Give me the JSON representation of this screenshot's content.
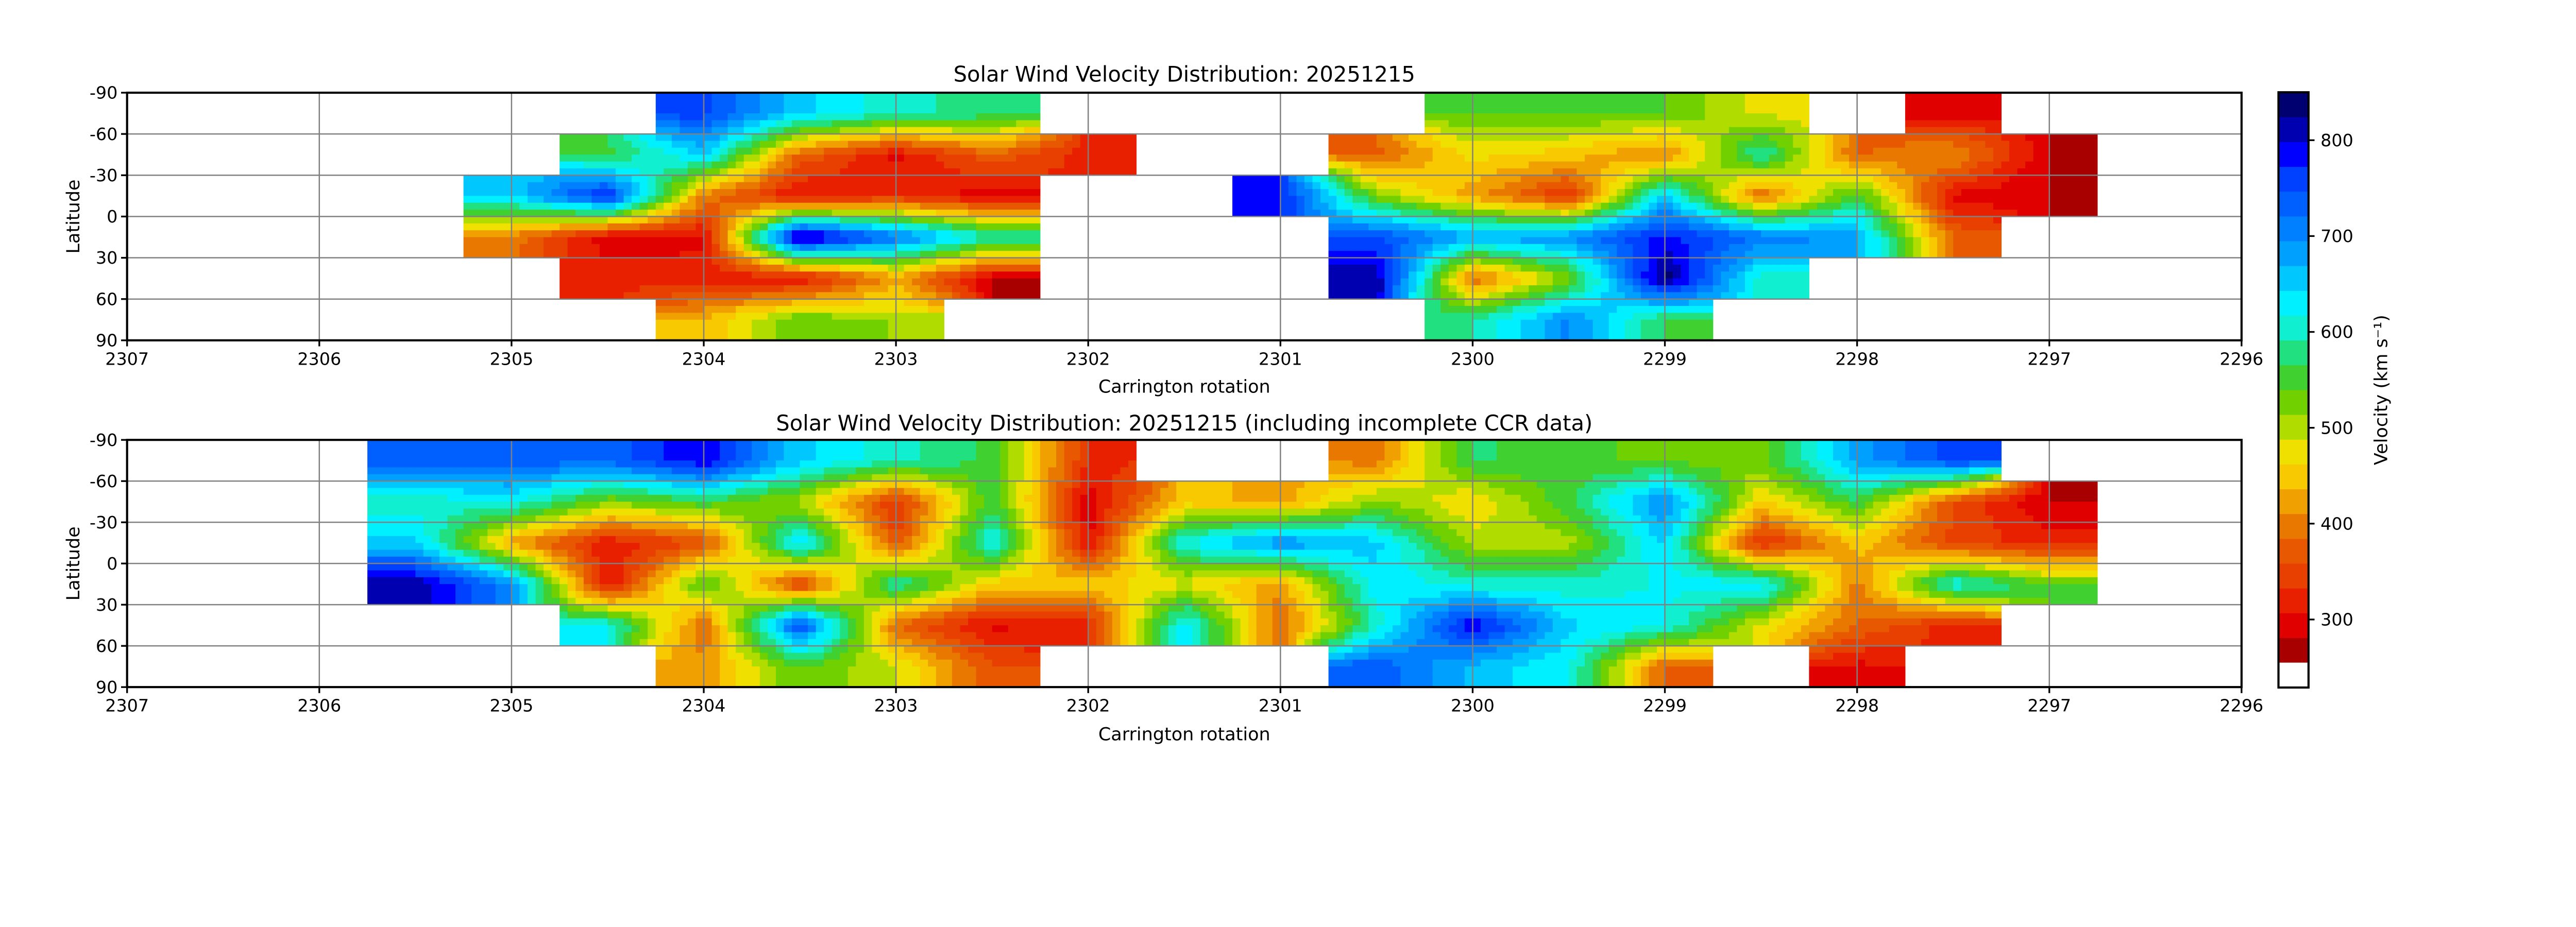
{
  "chart_data": [
    {
      "type": "heatmap",
      "title": "Solar Wind Velocity Distribution: 20251215",
      "xlabel": "Carrington rotation",
      "ylabel": "Latitude",
      "xlim": [
        2307,
        2296
      ],
      "ylim": [
        -90,
        90
      ],
      "xticks": [
        2307,
        2306,
        2305,
        2304,
        2303,
        2302,
        2301,
        2300,
        2299,
        2298,
        2297,
        2296
      ],
      "yticks": [
        -90,
        -60,
        -30,
        0,
        30,
        60,
        90
      ],
      "grid": true,
      "x_bin_centers": [
        2305.0,
        2304.5,
        2304.0,
        2303.5,
        2303.0,
        2302.5,
        2302.0,
        2301.5,
        2301.0,
        2300.5,
        2300.0,
        2299.5,
        2299.0,
        2298.5,
        2298.0,
        2297.5,
        2297.0
      ],
      "y_bin_centers": [
        -75,
        -45,
        -15,
        15,
        45,
        75
      ],
      "values": [
        [
          null,
          null,
          650,
          400,
          null,
          null
        ],
        [
          null,
          560,
          780,
          290,
          320,
          null
        ],
        [
          760,
          650,
          400,
          300,
          320,
          440
        ],
        [
          650,
          380,
          300,
          840,
          300,
          540
        ],
        [
          600,
          300,
          330,
          720,
          420,
          510
        ],
        [
          580,
          380,
          290,
          600,
          280,
          null
        ],
        [
          null,
          320,
          null,
          null,
          null,
          null
        ],
        [
          null,
          null,
          null,
          null,
          null,
          null
        ],
        [
          null,
          null,
          780,
          null,
          null,
          null
        ],
        [
          null,
          380,
          520,
          750,
          820,
          null
        ],
        [
          540,
          470,
          420,
          680,
          380,
          590
        ],
        [
          540,
          450,
          330,
          700,
          520,
          700
        ],
        [
          540,
          400,
          650,
          780,
          840,
          560
        ],
        [
          480,
          600,
          380,
          720,
          600,
          null
        ],
        [
          null,
          380,
          560,
          680,
          null,
          null
        ],
        [
          290,
          420,
          300,
          380,
          null,
          null
        ],
        [
          null,
          280,
          280,
          null,
          null,
          null
        ]
      ]
    },
    {
      "type": "heatmap",
      "title": "Solar Wind Velocity Distribution: 20251215 (including incomplete CCR data)",
      "xlabel": "Carrington rotation",
      "ylabel": "Latitude",
      "xlim": [
        2307,
        2296
      ],
      "ylim": [
        -90,
        90
      ],
      "xticks": [
        2307,
        2306,
        2305,
        2304,
        2303,
        2302,
        2301,
        2300,
        2299,
        2298,
        2297,
        2296
      ],
      "yticks": [
        -90,
        -60,
        -30,
        0,
        30,
        60,
        90
      ],
      "grid": true,
      "x_bin_centers": [
        2305.5,
        2305.0,
        2304.5,
        2304.0,
        2303.5,
        2303.0,
        2302.5,
        2302.0,
        2301.5,
        2301.0,
        2300.5,
        2300.0,
        2299.5,
        2299.0,
        2298.5,
        2298.0,
        2297.5,
        2297.0
      ],
      "y_bin_centers": [
        -75,
        -45,
        -15,
        15,
        45,
        75
      ],
      "values": [
        [
          740,
          600,
          650,
          820,
          null,
          null
        ],
        [
          740,
          620,
          420,
          700,
          null,
          null
        ],
        [
          730,
          520,
          310,
          300,
          620,
          null
        ],
        [
          800,
          560,
          360,
          560,
          380,
          420
        ],
        [
          650,
          500,
          650,
          340,
          760,
          540
        ],
        [
          600,
          330,
          360,
          600,
          380,
          490
        ],
        [
          560,
          560,
          620,
          450,
          300,
          360
        ],
        [
          330,
          290,
          300,
          450,
          320,
          null
        ],
        [
          null,
          450,
          620,
          480,
          640,
          null
        ],
        [
          null,
          420,
          700,
          420,
          380,
          null
        ],
        [
          400,
          520,
          650,
          640,
          600,
          740
        ],
        [
          570,
          460,
          500,
          600,
          800,
          660
        ],
        [
          550,
          560,
          500,
          600,
          650,
          620
        ],
        [
          530,
          700,
          650,
          620,
          620,
          380
        ],
        [
          530,
          460,
          320,
          640,
          480,
          null
        ],
        [
          680,
          560,
          450,
          400,
          380,
          300
        ],
        [
          760,
          360,
          350,
          620,
          320,
          null
        ],
        [
          null,
          280,
          320,
          540,
          null,
          null
        ]
      ]
    }
  ],
  "colorbar": {
    "label": "Velocity (km s⁻¹)",
    "vmin": 255,
    "vmax": 850,
    "ticks": [
      300,
      400,
      500,
      600,
      700,
      800
    ],
    "under_color": "#ffffff",
    "colors": [
      "#a80000",
      "#e00000",
      "#e82000",
      "#e84000",
      "#e85800",
      "#e87800",
      "#f0a000",
      "#f8c800",
      "#f0e000",
      "#b0dc00",
      "#70d000",
      "#40d030",
      "#20e080",
      "#10f0d0",
      "#00f0ff",
      "#00c8ff",
      "#00a0ff",
      "#0080ff",
      "#0060ff",
      "#0040ff",
      "#0000ff",
      "#0000b0",
      "#000070"
    ]
  }
}
